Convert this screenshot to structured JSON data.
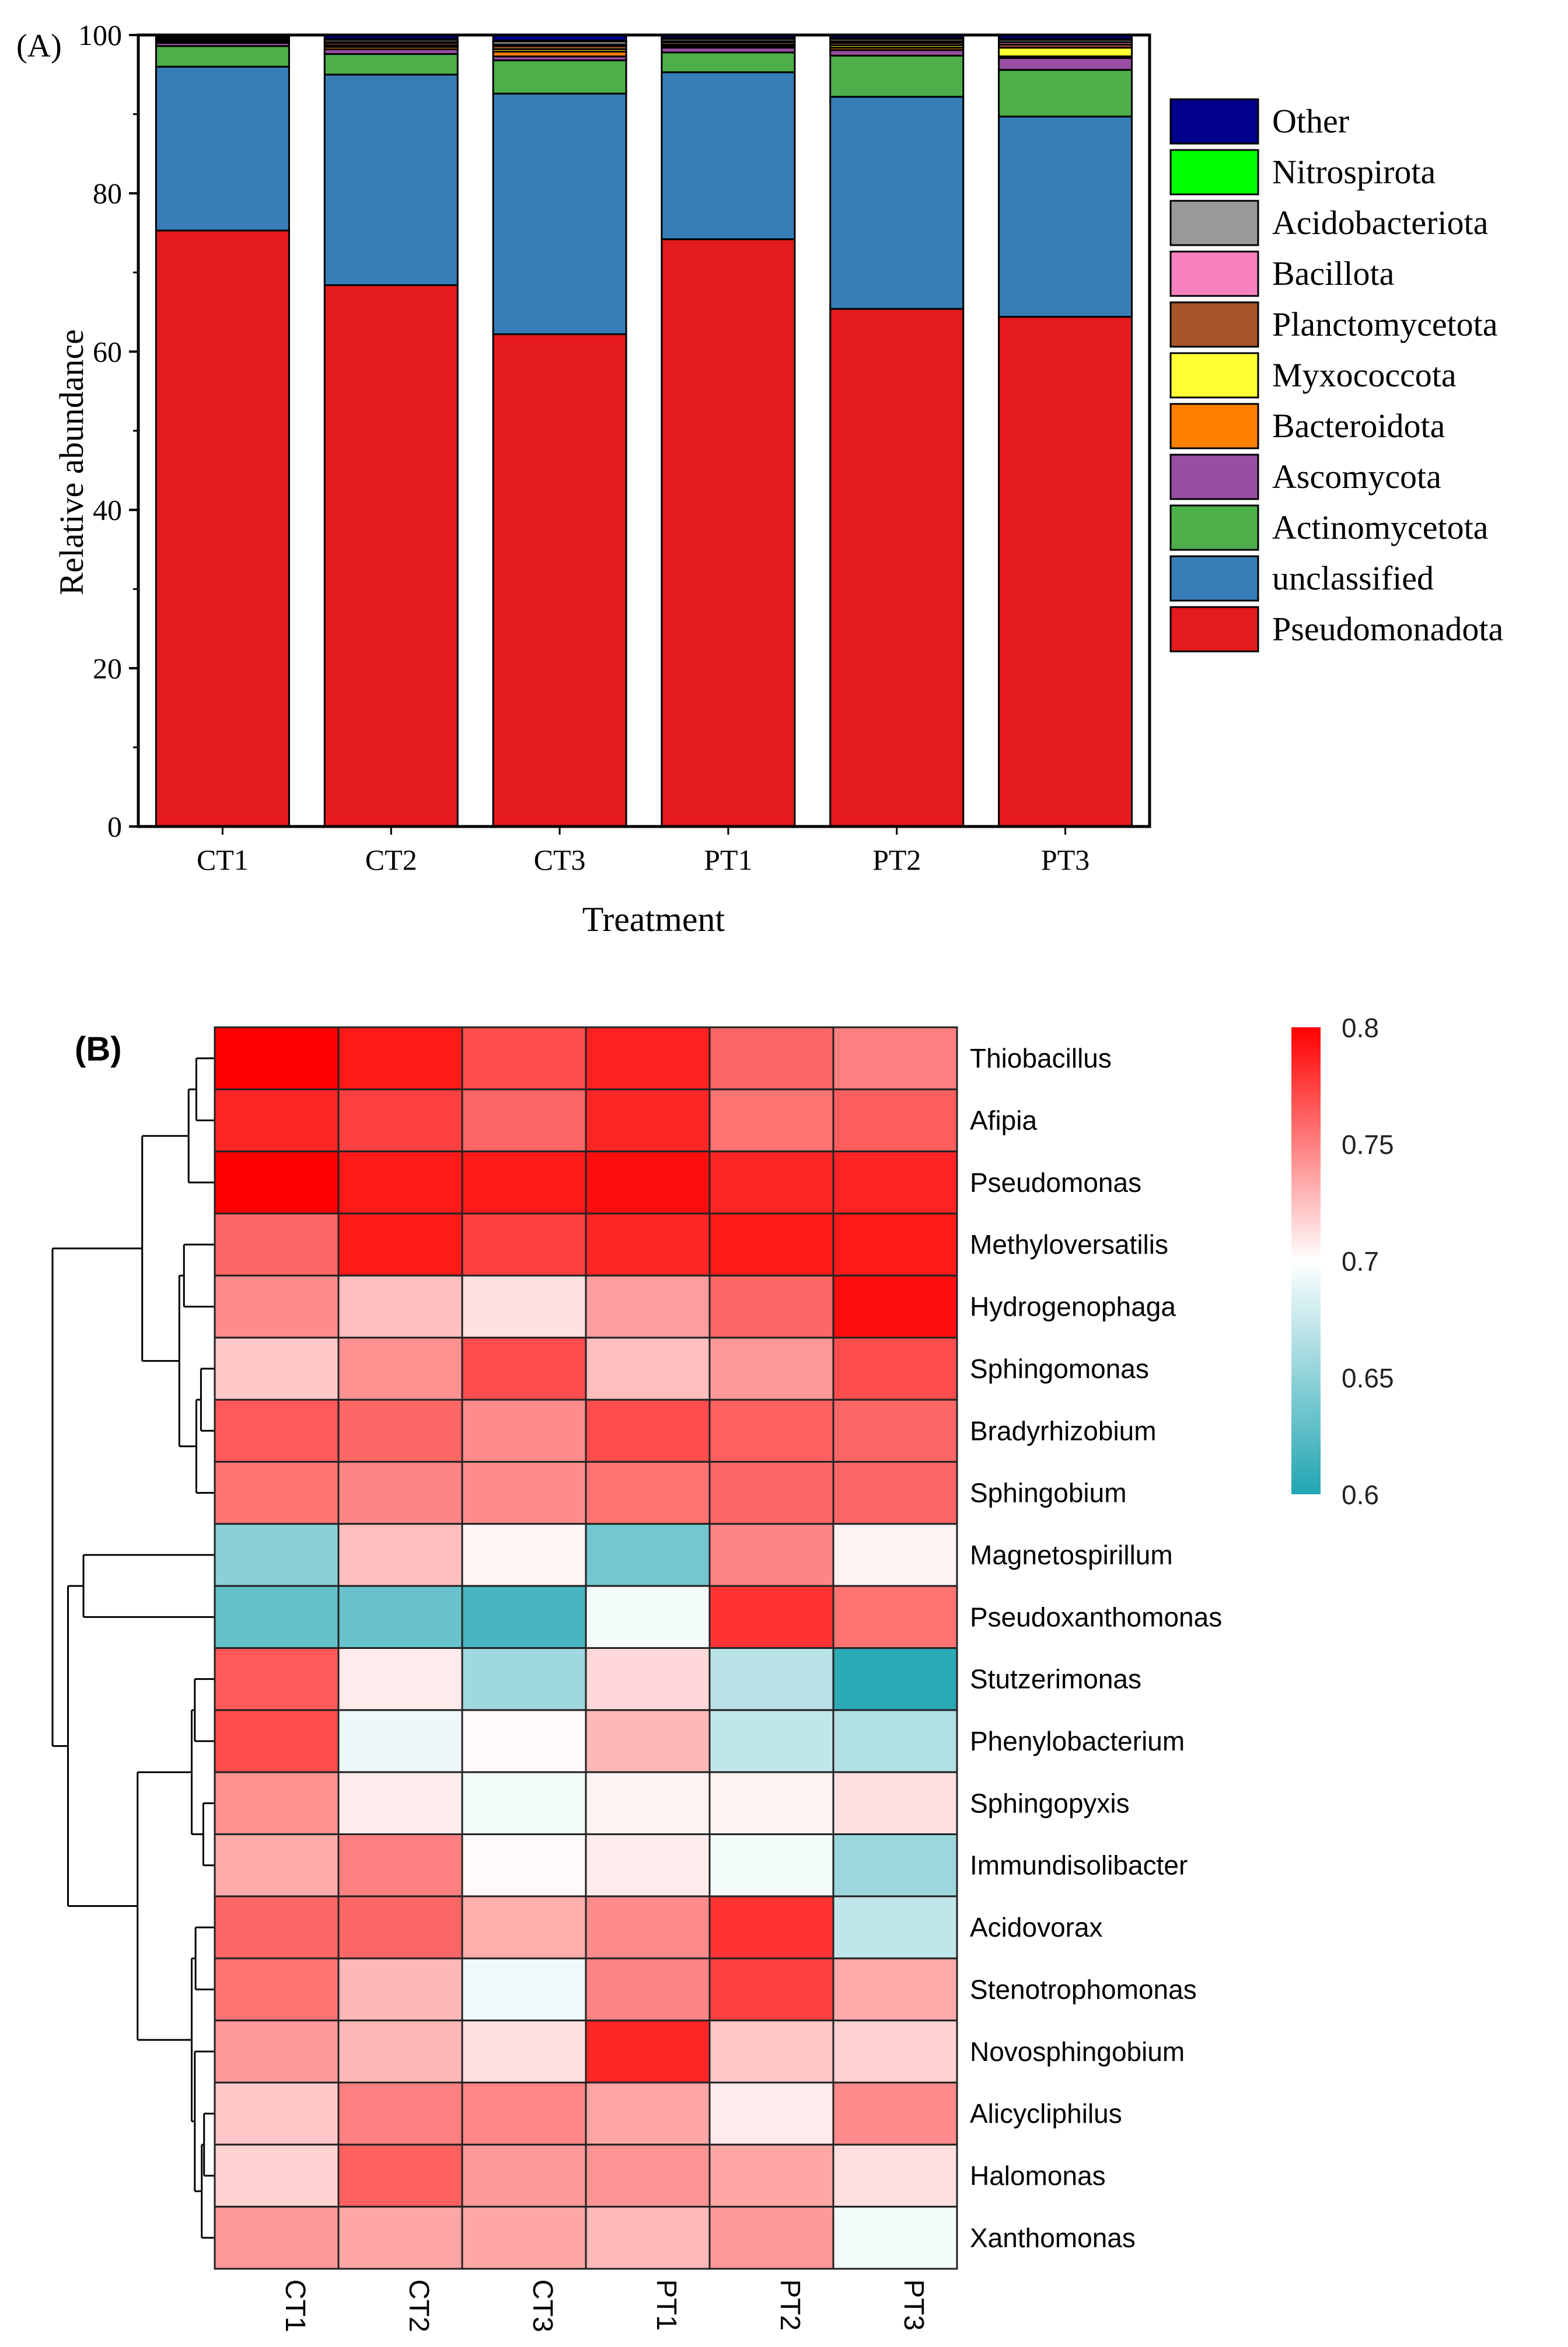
{
  "panel_a_label": "(A)",
  "panel_b_label": "(B)",
  "chart_data": [
    {
      "type": "bar",
      "stacked": true,
      "title": "",
      "xlabel": "Treatment",
      "ylabel": "Relative abundance",
      "ylim": [
        0,
        100
      ],
      "yticks": [
        "0",
        "20",
        "40",
        "60",
        "80",
        "100"
      ],
      "categories": [
        "CT1",
        "CT2",
        "CT3",
        "PT1",
        "PT2",
        "PT3"
      ],
      "legend_position": "right",
      "series": [
        {
          "name": "Pseudomonadota",
          "color": "#e41a1c",
          "values": [
            75.3,
            68.4,
            62.2,
            74.2,
            65.4,
            64.4
          ]
        },
        {
          "name": "unclassified",
          "color": "#377eb8",
          "values": [
            20.7,
            26.6,
            30.4,
            21.1,
            26.8,
            25.3
          ]
        },
        {
          "name": "Actinomycetota",
          "color": "#4daf4a",
          "values": [
            2.6,
            2.6,
            4.2,
            2.5,
            5.2,
            5.9
          ]
        },
        {
          "name": "Ascomycota",
          "color": "#984ea3",
          "values": [
            0.4,
            0.6,
            0.5,
            0.6,
            0.7,
            1.5
          ]
        },
        {
          "name": "Bacteroidota",
          "color": "#ff7f00",
          "values": [
            0.1,
            0.3,
            0.6,
            0.2,
            0.3,
            0.2
          ]
        },
        {
          "name": "Myxococcota",
          "color": "#ffff33",
          "values": [
            0.1,
            0.2,
            0.3,
            0.2,
            0.3,
            1.1
          ]
        },
        {
          "name": "Planctomycetota",
          "color": "#a65628",
          "values": [
            0.2,
            0.3,
            0.4,
            0.3,
            0.3,
            0.4
          ]
        },
        {
          "name": "Bacillota",
          "color": "#f781bf",
          "values": [
            0.1,
            0.1,
            0.2,
            0.1,
            0.2,
            0.3
          ]
        },
        {
          "name": "Acidobacteriota",
          "color": "#999999",
          "values": [
            0.2,
            0.3,
            0.4,
            0.3,
            0.3,
            0.3
          ]
        },
        {
          "name": "Nitrospirota",
          "color": "#00ff00",
          "values": [
            0.1,
            0.1,
            0.1,
            0.1,
            0.1,
            0.1
          ]
        },
        {
          "name": "Other",
          "color": "#00008b",
          "values": [
            0.2,
            0.5,
            0.7,
            0.4,
            0.4,
            0.5
          ]
        }
      ]
    },
    {
      "type": "heatmap",
      "title": "",
      "columns": [
        "CT1",
        "CT2",
        "CT3",
        "PT1",
        "PT2",
        "PT3"
      ],
      "rows": [
        "Thiobacillus",
        "Afipia",
        "Pseudomonas",
        "Methyloversatilis",
        "Hydrogenophaga",
        "Sphingomonas",
        "Bradyrhizobium",
        "Sphingobium",
        "Magnetospirillum",
        "Pseudoxanthomonas",
        "Stutzerimonas",
        "Phenylobacterium",
        "Sphingopyxis",
        "Immundisolibacter",
        "Acidovorax",
        "Stenotrophomonas",
        "Novosphingobium",
        "Alicycliphilus",
        "Halomonas",
        "Xanthomonas"
      ],
      "values": [
        [
          0.8,
          0.79,
          0.77,
          0.787,
          0.76,
          0.75
        ],
        [
          0.785,
          0.775,
          0.76,
          0.785,
          0.755,
          0.763
        ],
        [
          0.8,
          0.79,
          0.79,
          0.795,
          0.785,
          0.786
        ],
        [
          0.76,
          0.79,
          0.775,
          0.785,
          0.79,
          0.79
        ],
        [
          0.745,
          0.725,
          0.712,
          0.738,
          0.76,
          0.795
        ],
        [
          0.722,
          0.743,
          0.77,
          0.725,
          0.74,
          0.77
        ],
        [
          0.765,
          0.76,
          0.745,
          0.77,
          0.762,
          0.76
        ],
        [
          0.755,
          0.748,
          0.745,
          0.755,
          0.76,
          0.76
        ],
        [
          0.648,
          0.725,
          0.704,
          0.638,
          0.748,
          0.705
        ],
        [
          0.63,
          0.632,
          0.618,
          0.695,
          0.78,
          0.755
        ],
        [
          0.765,
          0.708,
          0.657,
          0.715,
          0.668,
          0.605
        ],
        [
          0.77,
          0.692,
          0.702,
          0.728,
          0.672,
          0.665
        ],
        [
          0.743,
          0.708,
          0.694,
          0.705,
          0.705,
          0.712
        ],
        [
          0.733,
          0.75,
          0.702,
          0.708,
          0.695,
          0.655
        ],
        [
          0.76,
          0.76,
          0.732,
          0.745,
          0.78,
          0.672
        ],
        [
          0.755,
          0.728,
          0.693,
          0.748,
          0.775,
          0.733
        ],
        [
          0.74,
          0.728,
          0.712,
          0.785,
          0.722,
          0.718
        ],
        [
          0.722,
          0.75,
          0.747,
          0.735,
          0.708,
          0.745
        ],
        [
          0.718,
          0.762,
          0.74,
          0.742,
          0.735,
          0.712
        ],
        [
          0.74,
          0.735,
          0.735,
          0.727,
          0.74,
          0.695
        ]
      ],
      "color_scale": {
        "min": 0.6,
        "mid": 0.7,
        "max": 0.8,
        "low_color": "#20a5b2",
        "mid_color": "#ffffff",
        "high_color": "#ff0000"
      },
      "colorbar_ticks": [
        "0.8",
        "0.75",
        "0.7",
        "0.65",
        "0.6"
      ],
      "row_dendrogram": true
    }
  ]
}
